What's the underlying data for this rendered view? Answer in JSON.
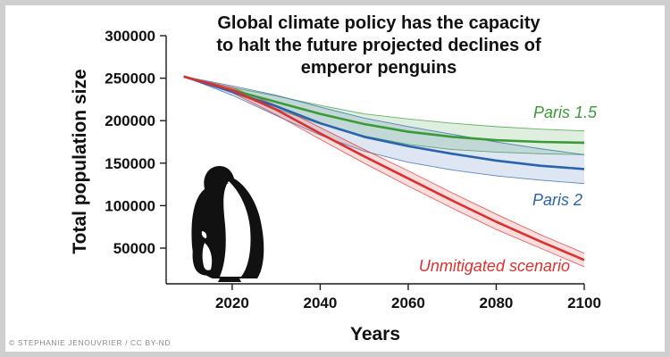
{
  "credit": "© STEPHANIE JENOUVRIER / CC BY-ND",
  "penguin_icon": "emperor-penguin-with-chick-icon",
  "chart_data": {
    "type": "line",
    "title": "Global climate policy has the capacity to halt the future projected declines of emperor penguins",
    "title_lines": [
      "Global climate policy has the capacity",
      "to halt the future projected declines of",
      "emperor penguins"
    ],
    "xlabel": "Years",
    "ylabel": "Total population size",
    "xlim": [
      2005,
      2100
    ],
    "ylim": [
      8000,
      300000
    ],
    "x_ticks": [
      2020,
      2040,
      2060,
      2080,
      2100
    ],
    "y_ticks": [
      50000,
      100000,
      150000,
      200000,
      250000,
      300000
    ],
    "grid": false,
    "x": [
      2009,
      2020,
      2030,
      2040,
      2050,
      2060,
      2070,
      2080,
      2090,
      2100
    ],
    "series": [
      {
        "name": "Paris 1.5",
        "color": "#3a9a35",
        "band_color": "#3a9a35",
        "values": [
          252000,
          236000,
          222000,
          208000,
          196000,
          187000,
          181000,
          177000,
          175000,
          174000
        ],
        "upper": [
          252000,
          239000,
          229000,
          218000,
          208000,
          202000,
          197000,
          193000,
          190000,
          188000
        ],
        "lower": [
          252000,
          233000,
          214000,
          196000,
          182000,
          172000,
          166000,
          163000,
          161000,
          160000
        ]
      },
      {
        "name": "Paris 2",
        "color": "#2b62ad",
        "band_color": "#2b62ad",
        "values": [
          252000,
          234000,
          217000,
          197000,
          181000,
          170000,
          161000,
          153000,
          147000,
          143000
        ],
        "upper": [
          252000,
          241000,
          230000,
          216000,
          203000,
          193000,
          184000,
          175000,
          167000,
          160000
        ],
        "lower": [
          252000,
          230000,
          206000,
          183000,
          164000,
          151000,
          142000,
          135000,
          130000,
          126000
        ]
      },
      {
        "name": "Unmitigated scenario",
        "color": "#d9322e",
        "band_color": "#d9322e",
        "values": [
          252000,
          236000,
          213000,
          185000,
          158000,
          132000,
          106000,
          81000,
          58000,
          36000
        ],
        "upper": [
          252000,
          239000,
          218000,
          192000,
          166000,
          141000,
          115000,
          90000,
          66000,
          44000
        ],
        "lower": [
          252000,
          233000,
          207000,
          178000,
          150000,
          123000,
          97000,
          72000,
          50000,
          28000
        ]
      }
    ]
  }
}
